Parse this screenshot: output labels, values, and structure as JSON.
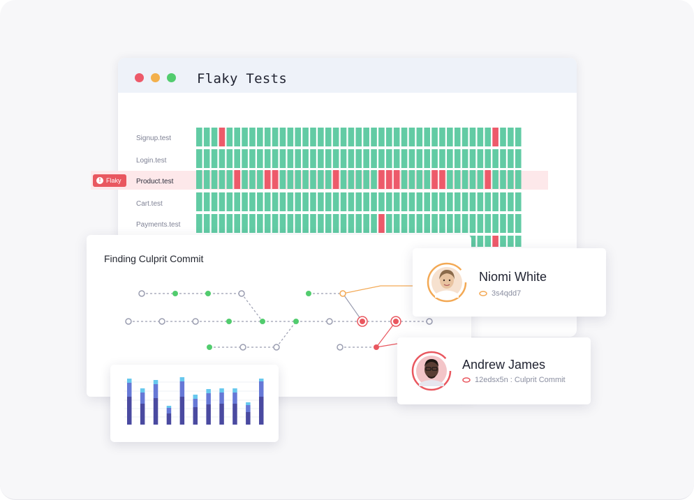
{
  "window": {
    "title": "Flaky Tests",
    "controls": {
      "close_color": "#ed5a6a",
      "minimize_color": "#f3b04c",
      "maximize_color": "#52cc6e"
    }
  },
  "tests": {
    "rows": [
      {
        "label": "Signup.test",
        "fail_columns": [
          3,
          39
        ]
      },
      {
        "label": "Login.test",
        "fail_columns": []
      },
      {
        "label": "Product.test",
        "fail_columns": [
          5,
          9,
          10,
          18,
          24,
          25,
          26,
          31,
          32,
          38
        ]
      },
      {
        "label": "Cart.test",
        "fail_columns": []
      },
      {
        "label": "Payments.test",
        "fail_columns": [
          24
        ]
      }
    ],
    "extra_row_fail_columns": [
      39
    ],
    "columns": 43,
    "flaky_row_index": 2,
    "flaky_badge": "Flaky",
    "colors": {
      "pass": "#62cba4",
      "fail": "#ed5a6a",
      "flaky_bg": "#fde8ea"
    }
  },
  "commit_panel": {
    "title": "Finding Culprit Commit"
  },
  "people": {
    "niomi": {
      "name": "Niomi White",
      "commit": "3s4qdd7",
      "ring_color": "#f3a955"
    },
    "andrew": {
      "name": "Andrew James",
      "commit": "12edsx5n : Culprit Commit",
      "ring_color": "#e9575f"
    }
  },
  "mini_chart": {
    "type": "bar",
    "series": [
      {
        "values": [
          40,
          30,
          38,
          16,
          40,
          25,
          29,
          30,
          30,
          18,
          40
        ]
      },
      {
        "values": [
          20,
          16,
          20,
          8,
          22,
          12,
          16,
          16,
          16,
          10,
          22
        ]
      },
      {
        "values": [
          6,
          6,
          6,
          3,
          6,
          6,
          6,
          6,
          6,
          4,
          4
        ]
      }
    ],
    "colors": [
      "#4a4aa0",
      "#6678d6",
      "#67c8ee"
    ]
  }
}
